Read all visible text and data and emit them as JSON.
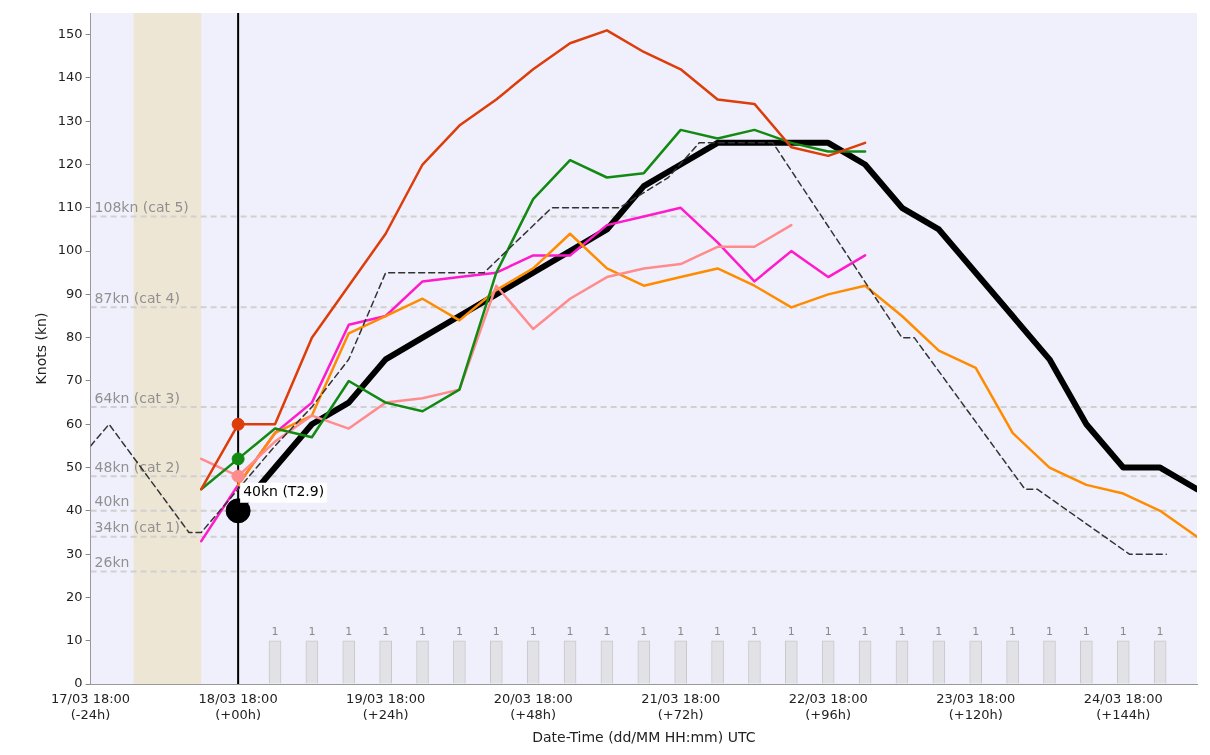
{
  "chart_data": {
    "type": "line",
    "xlabel": "Date-Time (dd/MM HH:mm) UTC",
    "ylabel": "Knots (kn)",
    "xlim": [
      "--03-17T18:00",
      "--03-25T06:00"
    ],
    "ylim": [
      0,
      155
    ],
    "xticks": [
      {
        "value": "--03-17T18:00",
        "label": "17/03 18:00\n(-24h)"
      },
      {
        "value": "--03-18T18:00",
        "label": "18/03 18:00\n(+00h)"
      },
      {
        "value": "--03-19T18:00",
        "label": "19/03 18:00\n(+24h)"
      },
      {
        "value": "--03-20T18:00",
        "label": "20/03 18:00\n(+48h)"
      },
      {
        "value": "--03-21T18:00",
        "label": "21/03 18:00\n(+72h)"
      },
      {
        "value": "--03-22T18:00",
        "label": "22/03 18:00\n(+96h)"
      },
      {
        "value": "--03-23T18:00",
        "label": "23/03 18:00\n(+120h)"
      },
      {
        "value": "--03-24T18:00",
        "label": "24/03 18:00\n(+144h)"
      }
    ],
    "yticks": [
      0,
      10,
      20,
      30,
      40,
      50,
      60,
      70,
      80,
      90,
      100,
      110,
      120,
      130,
      140,
      150
    ],
    "grid": false,
    "legend": false,
    "x": [
      "--03-18T12:00",
      "--03-18T18:00",
      "--03-19T00:00",
      "--03-19T06:00",
      "--03-19T12:00",
      "--03-19T18:00",
      "--03-20T00:00",
      "--03-20T06:00",
      "--03-20T12:00",
      "--03-20T18:00",
      "--03-21T00:00",
      "--03-21T06:00",
      "--03-21T12:00",
      "--03-21T18:00",
      "--03-22T00:00",
      "--03-22T06:00",
      "--03-22T12:00",
      "--03-22T18:00",
      "--03-23T00:00",
      "--03-23T06:00",
      "--03-23T12:00",
      "--03-23T18:00",
      "--03-24T00:00",
      "--03-24T06:00",
      "--03-24T12:00",
      "--03-24T18:00",
      "--03-25T00:00",
      "--03-25T06:00"
    ],
    "series": [
      {
        "type": "bar",
        "color": "#e2e2e6",
        "values": [
          null,
          null,
          10,
          10,
          10,
          10,
          10,
          10,
          10,
          10,
          10,
          10,
          10,
          10,
          10,
          10,
          10,
          10,
          10,
          10,
          10,
          10,
          10,
          10,
          10,
          10,
          10,
          null
        ]
      },
      {
        "color": "#333333",
        "line_style": "dashed",
        "x": [
          "--03-17T18:00",
          "--03-17T21:00",
          "--03-18T10:00",
          "--03-18T12:00",
          "--03-19T00:00",
          "--03-19T06:00",
          "--03-19T12:00",
          "--03-19T18:00",
          "--03-20T10:00",
          "--03-20T21:00",
          "--03-21T08:00",
          "--03-21T16:00",
          "--03-21T21:00",
          "--03-22T09:00",
          "--03-23T06:00",
          "--03-23T08:00",
          "--03-24T02:00",
          "--03-24T04:00",
          "--03-24T19:00",
          "--03-25T01:00"
        ],
        "values": [
          55,
          60,
          35,
          35,
          55,
          64,
          75,
          95,
          95,
          110,
          110,
          117,
          125,
          125,
          80,
          80,
          45,
          45,
          30,
          30
        ]
      },
      {
        "color": "#dd3d0a",
        "values": [
          45,
          60,
          60,
          80,
          92,
          104,
          120,
          129,
          135,
          142,
          148,
          151,
          146,
          142,
          135,
          134,
          124,
          122,
          125,
          null,
          null,
          null,
          null,
          null,
          null,
          null,
          null,
          null
        ]
      },
      {
        "color": "#128a12",
        "values": [
          45,
          52,
          59,
          57,
          70,
          65,
          63,
          68,
          95,
          112,
          121,
          117,
          118,
          128,
          126,
          128,
          125,
          123,
          123,
          null,
          null,
          null,
          null,
          null,
          null,
          null,
          null,
          null
        ]
      },
      {
        "color": "#ff8c8c",
        "values": [
          52,
          48,
          56,
          62,
          59,
          65,
          66,
          68,
          92,
          82,
          89,
          94,
          96,
          97,
          101,
          101,
          106,
          null,
          null,
          null,
          null,
          null,
          null,
          null,
          null,
          null,
          null,
          null
        ]
      },
      {
        "color": "#ff8c00",
        "values": [
          null,
          46,
          58,
          62,
          81,
          85,
          89,
          84,
          91,
          96,
          104,
          96,
          92,
          94,
          96,
          92,
          87,
          90,
          92,
          85,
          77,
          73,
          58,
          50,
          46,
          44,
          40,
          34
        ]
      },
      {
        "color": "#ff1acb",
        "values": [
          33,
          46,
          58,
          65,
          83,
          85,
          93,
          94,
          95,
          99,
          99,
          106,
          108,
          110,
          102,
          93,
          100,
          94,
          99,
          null,
          null,
          null,
          null,
          null,
          null,
          null,
          null,
          null
        ]
      },
      {
        "color": "#000000",
        "values": [
          null,
          40,
          50,
          60,
          65,
          75,
          80,
          85,
          90,
          95,
          100,
          105,
          115,
          120,
          125,
          125,
          125,
          125,
          120,
          110,
          105,
          95,
          85,
          75,
          60,
          50,
          50,
          45
        ]
      },
      {
        "type": "scatter",
        "x": [
          "--03-18T18:00",
          "--03-18T18:00",
          "--03-18T18:00"
        ],
        "values": [
          60,
          52,
          48
        ],
        "colors": [
          "#dd3d0a",
          "#128a12",
          "#ff8c8c"
        ]
      },
      {
        "type": "bubble",
        "color": "#000000",
        "x": [
          "--03-18T18:00"
        ],
        "values": [
          40
        ],
        "sizes": [
          1
        ]
      }
    ],
    "ref_lines": [
      {
        "axis": "y",
        "value": 108,
        "label": "108kn (cat 5)",
        "color": "#d0d0d0",
        "line_style": "dashed"
      },
      {
        "axis": "y",
        "value": 87,
        "label": "87kn (cat 4)",
        "color": "#d0d0d0",
        "line_style": "dashed"
      },
      {
        "axis": "y",
        "value": 64,
        "label": "64kn (cat 3)",
        "color": "#d0d0d0",
        "line_style": "dashed"
      },
      {
        "axis": "y",
        "value": 48,
        "label": "48kn (cat 2)",
        "color": "#d0d0d0",
        "line_style": "dashed"
      },
      {
        "axis": "y",
        "value": 40,
        "label": "40kn",
        "color": "#d0d0d0",
        "line_style": "dashed"
      },
      {
        "axis": "y",
        "value": 34,
        "label": "34kn (cat 1)",
        "color": "#d0d0d0",
        "line_style": "dashed"
      },
      {
        "axis": "y",
        "value": 26,
        "label": "26kn",
        "color": "#d0d0d0",
        "line_style": "dashed"
      },
      {
        "axis": "x",
        "value": "--03-18T18:00",
        "color": "#000000",
        "line_style": "solid"
      }
    ],
    "bands": [
      {
        "axis": "x",
        "from": "--03-18T01:00",
        "to": "--03-18T12:00",
        "color": "#ede6d4"
      }
    ],
    "annotations": [
      {
        "text": "40kn (T2.9)",
        "x": "--03-18T18:00",
        "y": 40
      },
      {
        "text": "1",
        "x": "--03-19T00:00",
        "y": 10
      },
      {
        "text": "1",
        "x": "--03-19T06:00",
        "y": 10
      },
      {
        "text": "1",
        "x": "--03-19T12:00",
        "y": 10
      },
      {
        "text": "1",
        "x": "--03-19T18:00",
        "y": 10
      },
      {
        "text": "1",
        "x": "--03-20T00:00",
        "y": 10
      },
      {
        "text": "1",
        "x": "--03-20T06:00",
        "y": 10
      },
      {
        "text": "1",
        "x": "--03-20T12:00",
        "y": 10
      },
      {
        "text": "1",
        "x": "--03-20T18:00",
        "y": 10
      },
      {
        "text": "1",
        "x": "--03-21T00:00",
        "y": 10
      },
      {
        "text": "1",
        "x": "--03-21T06:00",
        "y": 10
      },
      {
        "text": "1",
        "x": "--03-21T12:00",
        "y": 10
      },
      {
        "text": "1",
        "x": "--03-21T18:00",
        "y": 10
      },
      {
        "text": "1",
        "x": "--03-22T00:00",
        "y": 10
      },
      {
        "text": "1",
        "x": "--03-22T06:00",
        "y": 10
      },
      {
        "text": "1",
        "x": "--03-22T12:00",
        "y": 10
      },
      {
        "text": "1",
        "x": "--03-22T18:00",
        "y": 10
      },
      {
        "text": "1",
        "x": "--03-23T00:00",
        "y": 10
      },
      {
        "text": "1",
        "x": "--03-23T06:00",
        "y": 10
      },
      {
        "text": "1",
        "x": "--03-23T12:00",
        "y": 10
      },
      {
        "text": "1",
        "x": "--03-23T18:00",
        "y": 10
      },
      {
        "text": "1",
        "x": "--03-24T00:00",
        "y": 10
      },
      {
        "text": "1",
        "x": "--03-24T06:00",
        "y": 10
      },
      {
        "text": "1",
        "x": "--03-24T12:00",
        "y": 10
      },
      {
        "text": "1",
        "x": "--03-24T18:00",
        "y": 10
      },
      {
        "text": "1",
        "x": "--03-25T00:00",
        "y": 10
      }
    ]
  }
}
